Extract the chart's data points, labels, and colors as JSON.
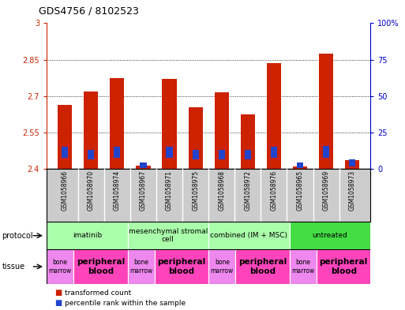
{
  "title": "GDS4756 / 8102523",
  "samples": [
    "GSM1058966",
    "GSM1058970",
    "GSM1058974",
    "GSM1058967",
    "GSM1058971",
    "GSM1058975",
    "GSM1058968",
    "GSM1058972",
    "GSM1058976",
    "GSM1058965",
    "GSM1058969",
    "GSM1058973"
  ],
  "red_values": [
    2.665,
    2.72,
    2.775,
    2.415,
    2.77,
    2.655,
    2.715,
    2.625,
    2.835,
    2.41,
    2.875,
    2.435
  ],
  "blue_values": [
    0.045,
    0.04,
    0.045,
    0.02,
    0.045,
    0.04,
    0.04,
    0.04,
    0.045,
    0.02,
    0.05,
    0.03
  ],
  "blue_bottom": [
    2.445,
    2.44,
    2.445,
    2.405,
    2.445,
    2.44,
    2.44,
    2.44,
    2.445,
    2.405,
    2.445,
    2.41
  ],
  "ylim_left": [
    2.4,
    3.0
  ],
  "ylim_right": [
    0,
    100
  ],
  "yticks_left": [
    2.4,
    2.55,
    2.7,
    2.85,
    3.0
  ],
  "ytick_labels_left": [
    "2.4",
    "2.55",
    "2.7",
    "2.85",
    "3"
  ],
  "yticks_right": [
    0,
    25,
    50,
    75,
    100
  ],
  "ytick_labels_right": [
    "0",
    "25",
    "50",
    "75",
    "100%"
  ],
  "base_value": 2.4,
  "protocols": [
    {
      "label": "imatinib",
      "start": 0,
      "end": 3,
      "color": "#aaffaa"
    },
    {
      "label": "mesenchymal stromal\ncell",
      "start": 3,
      "end": 6,
      "color": "#aaffaa"
    },
    {
      "label": "combined (IM + MSC)",
      "start": 6,
      "end": 9,
      "color": "#aaffaa"
    },
    {
      "label": "untreated",
      "start": 9,
      "end": 12,
      "color": "#44dd44"
    }
  ],
  "tissues": [
    {
      "label": "bone\nmarrow",
      "start": 0,
      "end": 1,
      "color": "#ee88ee"
    },
    {
      "label": "peripheral\nblood",
      "start": 1,
      "end": 3,
      "color": "#ff44bb"
    },
    {
      "label": "bone\nmarrow",
      "start": 3,
      "end": 4,
      "color": "#ee88ee"
    },
    {
      "label": "peripheral\nblood",
      "start": 4,
      "end": 6,
      "color": "#ff44bb"
    },
    {
      "label": "bone\nmarrow",
      "start": 6,
      "end": 7,
      "color": "#ee88ee"
    },
    {
      "label": "peripheral\nblood",
      "start": 7,
      "end": 9,
      "color": "#ff44bb"
    },
    {
      "label": "bone\nmarrow",
      "start": 9,
      "end": 10,
      "color": "#ee88ee"
    },
    {
      "label": "peripheral\nblood",
      "start": 10,
      "end": 12,
      "color": "#ff44bb"
    }
  ],
  "bar_color_red": "#cc2200",
  "bar_color_blue": "#2244cc",
  "bar_width": 0.55,
  "background_color": "#ffffff",
  "tick_color_left": "#cc2200",
  "tick_color_right": "#0000cc",
  "sample_bg_color": "#cccccc",
  "sample_border_color": "#888888"
}
